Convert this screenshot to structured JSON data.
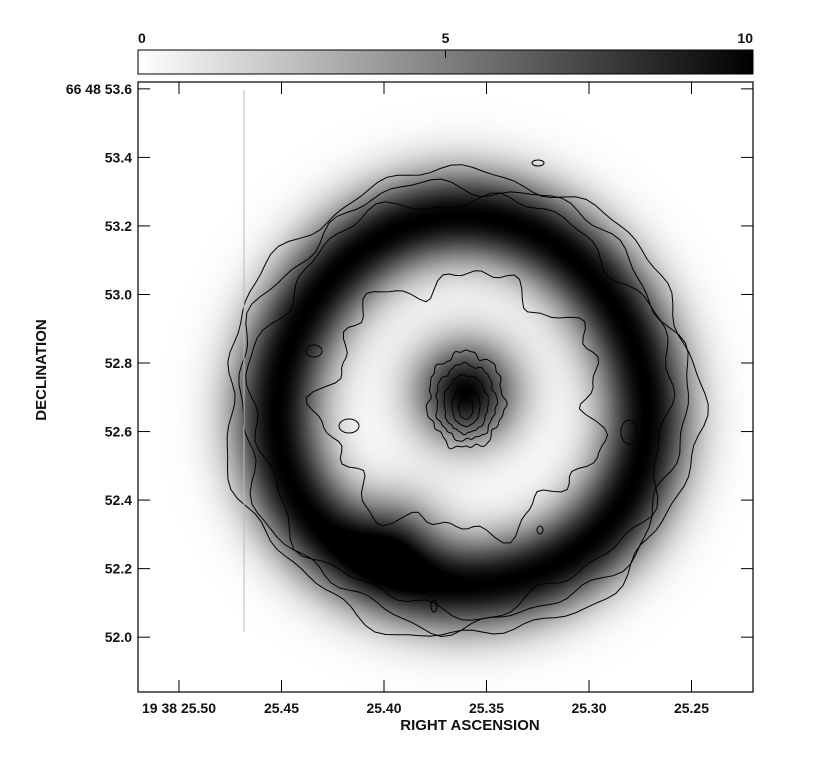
{
  "chart_data": {
    "type": "heatmap",
    "xlabel": "RIGHT ASCENSION",
    "ylabel": "DECLINATION",
    "colorbar": {
      "min": 0,
      "max": 10,
      "colormap": "grayscale, white (low) to black (high)",
      "ticks": [
        {
          "value": 0,
          "label": "0"
        },
        {
          "value": 5,
          "label": "5"
        },
        {
          "value": 10,
          "label": "10"
        }
      ]
    },
    "xlim": [
      25.52,
      25.22
    ],
    "ylim": [
      51.84,
      53.62
    ],
    "x_ticks": [
      {
        "value": 25.5,
        "label": "19 38 25.50"
      },
      {
        "value": 25.45,
        "label": "25.45"
      },
      {
        "value": 25.4,
        "label": "25.40"
      },
      {
        "value": 25.35,
        "label": "25.35"
      },
      {
        "value": 25.3,
        "label": "25.30"
      },
      {
        "value": 25.25,
        "label": "25.25"
      }
    ],
    "y_ticks": [
      {
        "value": 53.6,
        "label": "66 48 53.6"
      },
      {
        "value": 53.4,
        "label": "53.4"
      },
      {
        "value": 53.2,
        "label": "53.2"
      },
      {
        "value": 53.0,
        "label": "53.0"
      },
      {
        "value": 52.8,
        "label": "52.8"
      },
      {
        "value": 52.6,
        "label": "52.6"
      },
      {
        "value": 52.4,
        "label": "52.4"
      },
      {
        "value": 52.2,
        "label": "52.2"
      },
      {
        "value": 52.0,
        "label": "52.0"
      }
    ],
    "image_components": [
      {
        "name": "ring",
        "center_x": 25.362,
        "center_y": 52.68,
        "radius_x": 0.1,
        "radius_y": 0.48,
        "width_x": 0.018,
        "width_y": 0.085,
        "peak": 10
      },
      {
        "name": "core",
        "center_x": 25.36,
        "center_y": 52.715,
        "sigma_x": 0.019,
        "sigma_y": 0.095,
        "peak": 10
      },
      {
        "name": "southeast-knot",
        "center_x": 25.393,
        "center_y": 52.31,
        "sigma_x": 0.018,
        "sigma_y": 0.075,
        "peak": 4
      }
    ],
    "contour_levels": [
      "outer",
      "second",
      "third",
      "fourth",
      "core-1",
      "core-2",
      "core-3",
      "core-4",
      "core-5"
    ]
  }
}
